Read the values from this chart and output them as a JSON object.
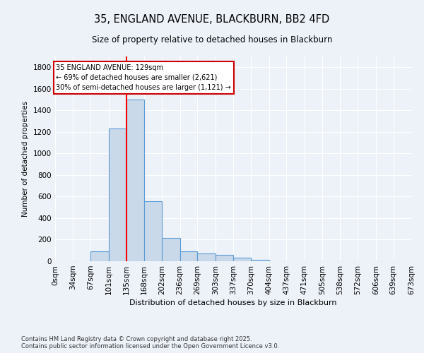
{
  "title_line1": "35, ENGLAND AVENUE, BLACKBURN, BB2 4FD",
  "title_line2": "Size of property relative to detached houses in Blackburn",
  "xlabel": "Distribution of detached houses by size in Blackburn",
  "ylabel": "Number of detached properties",
  "bin_labels": [
    "0sqm",
    "34sqm",
    "67sqm",
    "101sqm",
    "135sqm",
    "168sqm",
    "202sqm",
    "236sqm",
    "269sqm",
    "303sqm",
    "337sqm",
    "370sqm",
    "404sqm",
    "437sqm",
    "471sqm",
    "505sqm",
    "538sqm",
    "572sqm",
    "606sqm",
    "639sqm",
    "673sqm"
  ],
  "bin_edges": [
    0,
    34,
    67,
    101,
    135,
    168,
    202,
    236,
    269,
    303,
    337,
    370,
    404,
    437,
    471,
    505,
    538,
    572,
    606,
    639,
    673
  ],
  "bar_heights": [
    0,
    0,
    90,
    1230,
    1500,
    560,
    215,
    90,
    70,
    60,
    30,
    10,
    0,
    0,
    0,
    0,
    0,
    0,
    0,
    0
  ],
  "bar_color": "#c9d9ea",
  "bar_edge_color": "#5b9bd5",
  "red_line_x": 135,
  "ylim": [
    0,
    1900
  ],
  "yticks": [
    0,
    200,
    400,
    600,
    800,
    1000,
    1200,
    1400,
    1600,
    1800
  ],
  "annotation_title": "35 ENGLAND AVENUE: 129sqm",
  "annotation_line2": "← 69% of detached houses are smaller (2,621)",
  "annotation_line3": "30% of semi-detached houses are larger (1,121) →",
  "annotation_box_color": "#ffffff",
  "annotation_box_edge": "#cc0000",
  "footer_line1": "Contains HM Land Registry data © Crown copyright and database right 2025.",
  "footer_line2": "Contains public sector information licensed under the Open Government Licence v3.0.",
  "background_color": "#edf2f9",
  "figwidth": 6.0,
  "figheight": 5.0,
  "dpi": 100
}
